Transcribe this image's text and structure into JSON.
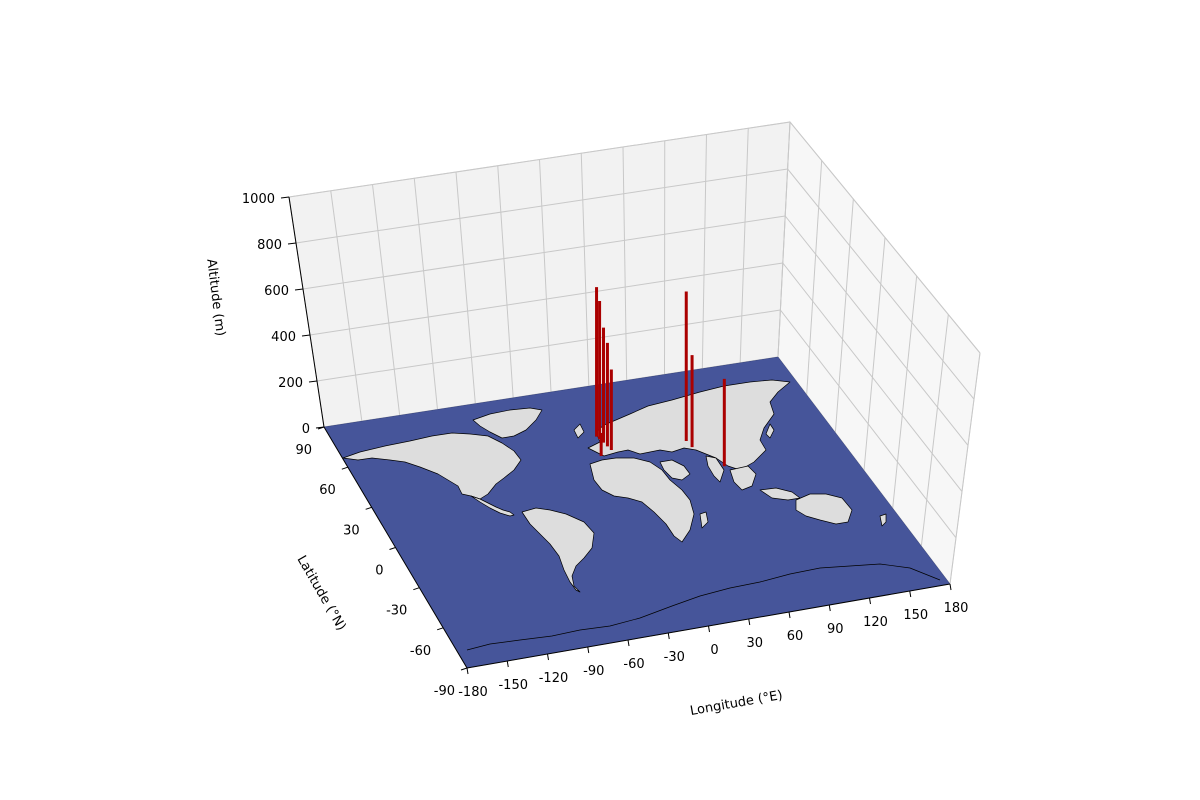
{
  "chart_data": {
    "type": "bar3d",
    "title": "",
    "xlabel": "Longitude (°E)",
    "ylabel": "Latitude (°N)",
    "zlabel": "Altitude (m)",
    "xlim": [
      -180,
      180
    ],
    "ylim": [
      -90,
      90
    ],
    "zlim": [
      0,
      1000
    ],
    "x_ticks": [
      "-180",
      "-150",
      "-120",
      "-90",
      "-60",
      "-30",
      "0",
      "30",
      "60",
      "90",
      "120",
      "150",
      "180"
    ],
    "y_ticks": [
      "-90",
      "-60",
      "-30",
      "0",
      "30",
      "60",
      "90"
    ],
    "z_ticks": [
      "0",
      "200",
      "400",
      "600",
      "800",
      "1000"
    ],
    "grid": true,
    "basemap": "world map (coastlines and country borders)",
    "colors": {
      "ocean": "#46559a",
      "land": "#dddddd",
      "bars": "#aa0000",
      "pane_back": "#f2f2f2",
      "pane_side": "#f7f7f7"
    },
    "points": [
      {
        "lon": 11,
        "lat": 54,
        "alt": 650
      },
      {
        "lon": 12,
        "lat": 52,
        "alt": 600
      },
      {
        "lon": 13,
        "lat": 49,
        "alt": 500
      },
      {
        "lon": 14,
        "lat": 46,
        "alt": 450
      },
      {
        "lon": 15,
        "lat": 43,
        "alt": 350
      },
      {
        "lon": 5,
        "lat": 40,
        "alt": 100
      },
      {
        "lon": 72,
        "lat": 41,
        "alt": 650
      },
      {
        "lon": 73,
        "lat": 36,
        "alt": 400
      },
      {
        "lon": 86,
        "lat": 19,
        "alt": 380
      }
    ]
  }
}
